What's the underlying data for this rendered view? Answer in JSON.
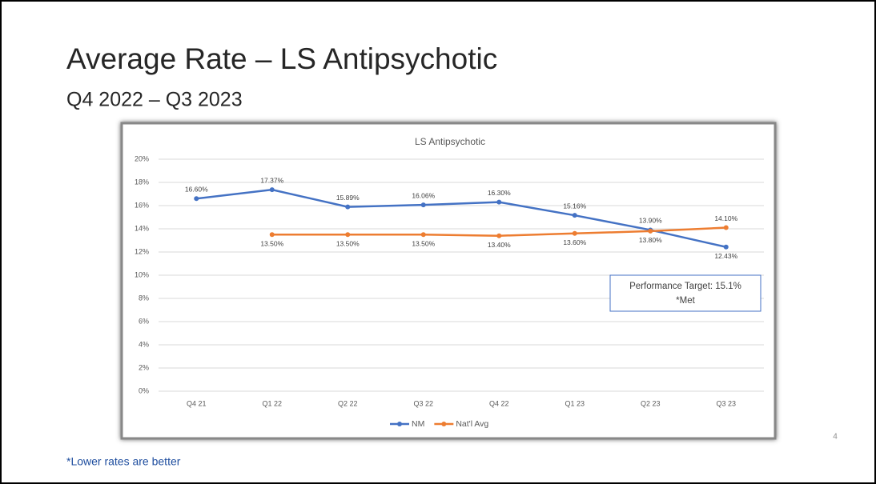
{
  "slide": {
    "title": "Average Rate – LS Antipsychotic",
    "subtitle": "Q4 2022 – Q3 2023",
    "footnote": "*Lower rates are better",
    "page_number": "4"
  },
  "chart_data": {
    "type": "line",
    "title": "LS Antipsychotic",
    "categories": [
      "Q4 21",
      "Q1 22",
      "Q2 22",
      "Q3 22",
      "Q4 22",
      "Q1 23",
      "Q2 23",
      "Q3 23"
    ],
    "series": [
      {
        "name": "NM",
        "color": "#4472c4",
        "values": [
          16.6,
          17.37,
          15.89,
          16.06,
          16.3,
          15.16,
          13.9,
          12.43
        ],
        "value_labels": [
          "16.60%",
          "17.37%",
          "15.89%",
          "16.06%",
          "16.30%",
          "15.16%",
          "13.90%",
          "12.43%"
        ]
      },
      {
        "name": "Nat'l Avg",
        "color": "#ed7d31",
        "values": [
          null,
          13.5,
          13.5,
          13.5,
          13.4,
          13.6,
          13.8,
          14.1
        ],
        "value_labels": [
          null,
          "13.50%",
          "13.50%",
          "13.50%",
          "13.40%",
          "13.60%",
          "13.80%",
          "14.10%"
        ]
      }
    ],
    "ylim": [
      0,
      20
    ],
    "yticks": [
      {
        "value": 0,
        "label": "0%"
      },
      {
        "value": 2,
        "label": "2%"
      },
      {
        "value": 4,
        "label": "4%"
      },
      {
        "value": 6,
        "label": "6%"
      },
      {
        "value": 8,
        "label": "8%"
      },
      {
        "value": 10,
        "label": "10%"
      },
      {
        "value": 12,
        "label": "12%"
      },
      {
        "value": 14,
        "label": "14%"
      },
      {
        "value": 16,
        "label": "16%"
      },
      {
        "value": 18,
        "label": "18%"
      },
      {
        "value": 20,
        "label": "20%"
      }
    ],
    "grid": true,
    "legend": "bottom",
    "annotations": [
      "Performance Target:  15.1%",
      "*Met"
    ]
  }
}
